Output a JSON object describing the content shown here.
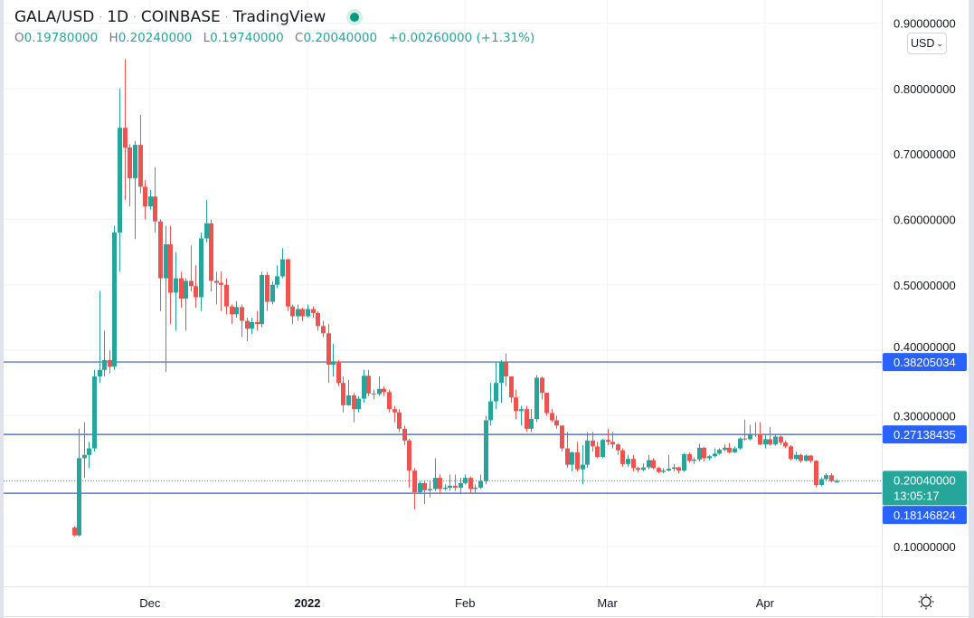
{
  "header": {
    "symbol": "GALA/USD",
    "interval": "1D",
    "exchange": "COINBASE",
    "source": "TradingView",
    "separator": "·",
    "status_color": "#089981",
    "ohlc": {
      "o_label": "O",
      "o": "0.19780000",
      "h_label": "H",
      "h": "0.20240000",
      "l_label": "L",
      "l": "0.19740000",
      "c_label": "C",
      "c": "0.20040000",
      "change": "+0.00260000 (+1.31%)"
    }
  },
  "currency_button": {
    "label": "USD",
    "icon": "chevron-down-icon"
  },
  "settings_icon": "sun-icon",
  "colors": {
    "up": "#26a69a",
    "down": "#ef5350",
    "hline": "#2962ff",
    "last_price": "#26a69a"
  },
  "chart_data": {
    "type": "candlestick",
    "title": "",
    "xlabel": "",
    "ylabel": "",
    "ylim": [
      0.04,
      0.92
    ],
    "grid": true,
    "y_ticks": [
      {
        "value": 0.9,
        "label": "0.90000000"
      },
      {
        "value": 0.8,
        "label": "0.80000000"
      },
      {
        "value": 0.7,
        "label": "0.70000000"
      },
      {
        "value": 0.6,
        "label": "0.60000000"
      },
      {
        "value": 0.5,
        "label": "0.50000000"
      },
      {
        "value": 0.4,
        "label": "0.40000000"
      },
      {
        "value": 0.3,
        "label": "0.30000000"
      },
      {
        "value": 0.1,
        "label": "0.10000000"
      }
    ],
    "x_ticks": [
      {
        "date": "2021-12-01",
        "label": "Dec",
        "bold": false
      },
      {
        "date": "2022-01-01",
        "label": "2022",
        "bold": true
      },
      {
        "date": "2022-02-01",
        "label": "Feb",
        "bold": false
      },
      {
        "date": "2022-03-01",
        "label": "Mar",
        "bold": false
      },
      {
        "date": "2022-04-01",
        "label": "Apr",
        "bold": false
      }
    ],
    "horizontal_lines": [
      {
        "value": 0.38205034,
        "label": "0.38205034"
      },
      {
        "value": 0.27138435,
        "label": "0.27138435"
      },
      {
        "value": 0.18146824,
        "label": "0.18146824"
      }
    ],
    "last_price": {
      "value": 0.2004,
      "label": "0.20040000",
      "countdown": "13:05:17"
    },
    "candles_format": [
      "date",
      "open",
      "high",
      "low",
      "close"
    ],
    "candles": [
      [
        "2021-11-16",
        0.129,
        0.131,
        0.115,
        0.117
      ],
      [
        "2021-11-17",
        0.117,
        0.28,
        0.115,
        0.235
      ],
      [
        "2021-11-18",
        0.235,
        0.29,
        0.205,
        0.24
      ],
      [
        "2021-11-19",
        0.24,
        0.26,
        0.22,
        0.25
      ],
      [
        "2021-11-20",
        0.25,
        0.37,
        0.245,
        0.36
      ],
      [
        "2021-11-21",
        0.36,
        0.49,
        0.35,
        0.37
      ],
      [
        "2021-11-22",
        0.37,
        0.43,
        0.36,
        0.385
      ],
      [
        "2021-11-23",
        0.385,
        0.4,
        0.365,
        0.375
      ],
      [
        "2021-11-24",
        0.375,
        0.59,
        0.37,
        0.58
      ],
      [
        "2021-11-25",
        0.58,
        0.8,
        0.52,
        0.74
      ],
      [
        "2021-11-26",
        0.74,
        0.845,
        0.63,
        0.71
      ],
      [
        "2021-11-27",
        0.71,
        0.715,
        0.62,
        0.663
      ],
      [
        "2021-11-28",
        0.663,
        0.72,
        0.57,
        0.714
      ],
      [
        "2021-11-29",
        0.714,
        0.76,
        0.64,
        0.65
      ],
      [
        "2021-11-30",
        0.65,
        0.66,
        0.6,
        0.62
      ],
      [
        "2021-12-01",
        0.62,
        0.645,
        0.615,
        0.635
      ],
      [
        "2021-12-02",
        0.635,
        0.68,
        0.58,
        0.597
      ],
      [
        "2021-12-03",
        0.597,
        0.6,
        0.46,
        0.51
      ],
      [
        "2021-12-04",
        0.51,
        0.59,
        0.367,
        0.562
      ],
      [
        "2021-12-05",
        0.562,
        0.59,
        0.44,
        0.488
      ],
      [
        "2021-12-06",
        0.488,
        0.55,
        0.43,
        0.51
      ],
      [
        "2021-12-07",
        0.51,
        0.52,
        0.465,
        0.479
      ],
      [
        "2021-12-08",
        0.479,
        0.51,
        0.43,
        0.506
      ],
      [
        "2021-12-09",
        0.506,
        0.56,
        0.49,
        0.498
      ],
      [
        "2021-12-10",
        0.498,
        0.53,
        0.465,
        0.481
      ],
      [
        "2021-12-11",
        0.481,
        0.58,
        0.46,
        0.571
      ],
      [
        "2021-12-12",
        0.571,
        0.63,
        0.565,
        0.594
      ],
      [
        "2021-12-13",
        0.594,
        0.6,
        0.49,
        0.506
      ],
      [
        "2021-12-14",
        0.506,
        0.52,
        0.47,
        0.503
      ],
      [
        "2021-12-15",
        0.503,
        0.52,
        0.46,
        0.5
      ],
      [
        "2021-12-16",
        0.5,
        0.51,
        0.455,
        0.467
      ],
      [
        "2021-12-17",
        0.467,
        0.47,
        0.44,
        0.455
      ],
      [
        "2021-12-18",
        0.455,
        0.475,
        0.45,
        0.466
      ],
      [
        "2021-12-19",
        0.466,
        0.47,
        0.42,
        0.445
      ],
      [
        "2021-12-20",
        0.445,
        0.45,
        0.414,
        0.433
      ],
      [
        "2021-12-21",
        0.433,
        0.45,
        0.425,
        0.443
      ],
      [
        "2021-12-22",
        0.443,
        0.46,
        0.43,
        0.44
      ],
      [
        "2021-12-23",
        0.44,
        0.52,
        0.435,
        0.515
      ],
      [
        "2021-12-24",
        0.515,
        0.52,
        0.46,
        0.474
      ],
      [
        "2021-12-25",
        0.474,
        0.505,
        0.47,
        0.5
      ],
      [
        "2021-12-26",
        0.5,
        0.53,
        0.495,
        0.513
      ],
      [
        "2021-12-27",
        0.513,
        0.556,
        0.51,
        0.539
      ],
      [
        "2021-12-28",
        0.539,
        0.54,
        0.46,
        0.467
      ],
      [
        "2021-12-29",
        0.467,
        0.47,
        0.44,
        0.452
      ],
      [
        "2021-12-30",
        0.452,
        0.47,
        0.445,
        0.463
      ],
      [
        "2021-12-31",
        0.463,
        0.465,
        0.445,
        0.452
      ],
      [
        "2022-01-01",
        0.452,
        0.47,
        0.45,
        0.463
      ],
      [
        "2022-01-02",
        0.463,
        0.467,
        0.45,
        0.457
      ],
      [
        "2022-01-03",
        0.457,
        0.46,
        0.43,
        0.437
      ],
      [
        "2022-01-04",
        0.437,
        0.445,
        0.42,
        0.426
      ],
      [
        "2022-01-05",
        0.426,
        0.44,
        0.35,
        0.378
      ],
      [
        "2022-01-06",
        0.378,
        0.41,
        0.36,
        0.383
      ],
      [
        "2022-01-07",
        0.383,
        0.385,
        0.345,
        0.35
      ],
      [
        "2022-01-08",
        0.35,
        0.36,
        0.305,
        0.316
      ],
      [
        "2022-01-09",
        0.316,
        0.355,
        0.315,
        0.331
      ],
      [
        "2022-01-10",
        0.331,
        0.335,
        0.29,
        0.31
      ],
      [
        "2022-01-11",
        0.31,
        0.33,
        0.305,
        0.326
      ],
      [
        "2022-01-12",
        0.326,
        0.37,
        0.32,
        0.361
      ],
      [
        "2022-01-13",
        0.361,
        0.37,
        0.33,
        0.334
      ],
      [
        "2022-01-14",
        0.334,
        0.34,
        0.325,
        0.333
      ],
      [
        "2022-01-15",
        0.333,
        0.36,
        0.33,
        0.341
      ],
      [
        "2022-01-16",
        0.341,
        0.345,
        0.33,
        0.336
      ],
      [
        "2022-01-17",
        0.336,
        0.34,
        0.305,
        0.31
      ],
      [
        "2022-01-18",
        0.31,
        0.315,
        0.29,
        0.305
      ],
      [
        "2022-01-19",
        0.305,
        0.31,
        0.275,
        0.28
      ],
      [
        "2022-01-20",
        0.28,
        0.285,
        0.255,
        0.262
      ],
      [
        "2022-01-21",
        0.262,
        0.265,
        0.19,
        0.216
      ],
      [
        "2022-01-22",
        0.216,
        0.22,
        0.157,
        0.183
      ],
      [
        "2022-01-23",
        0.183,
        0.2,
        0.18,
        0.197
      ],
      [
        "2022-01-24",
        0.197,
        0.2,
        0.165,
        0.186
      ],
      [
        "2022-01-25",
        0.186,
        0.2,
        0.175,
        0.188
      ],
      [
        "2022-01-26",
        0.188,
        0.235,
        0.185,
        0.205
      ],
      [
        "2022-01-27",
        0.205,
        0.21,
        0.18,
        0.188
      ],
      [
        "2022-01-28",
        0.188,
        0.195,
        0.185,
        0.19
      ],
      [
        "2022-01-29",
        0.19,
        0.21,
        0.185,
        0.193
      ],
      [
        "2022-01-30",
        0.193,
        0.21,
        0.185,
        0.19
      ],
      [
        "2022-01-31",
        0.19,
        0.205,
        0.18,
        0.197
      ],
      [
        "2022-02-01",
        0.197,
        0.21,
        0.195,
        0.205
      ],
      [
        "2022-02-02",
        0.205,
        0.207,
        0.182,
        0.188
      ],
      [
        "2022-02-03",
        0.188,
        0.195,
        0.182,
        0.19
      ],
      [
        "2022-02-04",
        0.19,
        0.21,
        0.188,
        0.2
      ],
      [
        "2022-02-05",
        0.2,
        0.3,
        0.195,
        0.293
      ],
      [
        "2022-02-06",
        0.293,
        0.35,
        0.285,
        0.322
      ],
      [
        "2022-02-07",
        0.322,
        0.383,
        0.31,
        0.35
      ],
      [
        "2022-02-08",
        0.35,
        0.385,
        0.32,
        0.383
      ],
      [
        "2022-02-09",
        0.383,
        0.395,
        0.345,
        0.36
      ],
      [
        "2022-02-10",
        0.36,
        0.36,
        0.32,
        0.328
      ],
      [
        "2022-02-11",
        0.328,
        0.34,
        0.295,
        0.307
      ],
      [
        "2022-02-12",
        0.307,
        0.315,
        0.285,
        0.31
      ],
      [
        "2022-02-13",
        0.31,
        0.315,
        0.275,
        0.28
      ],
      [
        "2022-02-14",
        0.28,
        0.31,
        0.275,
        0.295
      ],
      [
        "2022-02-15",
        0.295,
        0.362,
        0.29,
        0.358
      ],
      [
        "2022-02-16",
        0.358,
        0.36,
        0.325,
        0.335
      ],
      [
        "2022-02-17",
        0.335,
        0.335,
        0.3,
        0.304
      ],
      [
        "2022-02-18",
        0.304,
        0.31,
        0.29,
        0.293
      ],
      [
        "2022-02-19",
        0.293,
        0.3,
        0.28,
        0.285
      ],
      [
        "2022-02-20",
        0.285,
        0.285,
        0.245,
        0.25
      ],
      [
        "2022-02-21",
        0.25,
        0.275,
        0.22,
        0.225
      ],
      [
        "2022-02-22",
        0.225,
        0.245,
        0.215,
        0.244
      ],
      [
        "2022-02-23",
        0.244,
        0.26,
        0.215,
        0.218
      ],
      [
        "2022-02-24",
        0.218,
        0.255,
        0.195,
        0.225
      ],
      [
        "2022-02-25",
        0.225,
        0.275,
        0.22,
        0.262
      ],
      [
        "2022-02-26",
        0.262,
        0.275,
        0.245,
        0.253
      ],
      [
        "2022-02-27",
        0.253,
        0.26,
        0.235,
        0.237
      ],
      [
        "2022-02-28",
        0.237,
        0.265,
        0.235,
        0.263
      ],
      [
        "2022-03-01",
        0.263,
        0.28,
        0.255,
        0.26
      ],
      [
        "2022-03-02",
        0.26,
        0.275,
        0.25,
        0.256
      ],
      [
        "2022-03-03",
        0.256,
        0.258,
        0.24,
        0.247
      ],
      [
        "2022-03-04",
        0.247,
        0.25,
        0.222,
        0.226
      ],
      [
        "2022-03-05",
        0.226,
        0.24,
        0.222,
        0.234
      ],
      [
        "2022-03-06",
        0.234,
        0.24,
        0.215,
        0.22
      ],
      [
        "2022-03-07",
        0.22,
        0.222,
        0.213,
        0.217
      ],
      [
        "2022-03-08",
        0.217,
        0.227,
        0.215,
        0.221
      ],
      [
        "2022-03-09",
        0.221,
        0.24,
        0.218,
        0.232
      ],
      [
        "2022-03-10",
        0.232,
        0.235,
        0.218,
        0.22
      ],
      [
        "2022-03-11",
        0.22,
        0.222,
        0.212,
        0.214
      ],
      [
        "2022-03-12",
        0.214,
        0.22,
        0.212,
        0.216
      ],
      [
        "2022-03-13",
        0.216,
        0.24,
        0.215,
        0.219
      ],
      [
        "2022-03-14",
        0.219,
        0.226,
        0.215,
        0.221
      ],
      [
        "2022-03-15",
        0.221,
        0.222,
        0.212,
        0.216
      ],
      [
        "2022-03-16",
        0.216,
        0.243,
        0.214,
        0.241
      ],
      [
        "2022-03-17",
        0.241,
        0.244,
        0.228,
        0.231
      ],
      [
        "2022-03-18",
        0.231,
        0.236,
        0.226,
        0.233
      ],
      [
        "2022-03-19",
        0.233,
        0.257,
        0.23,
        0.251
      ],
      [
        "2022-03-20",
        0.251,
        0.252,
        0.23,
        0.235
      ],
      [
        "2022-03-21",
        0.235,
        0.24,
        0.232,
        0.238
      ],
      [
        "2022-03-22",
        0.238,
        0.25,
        0.236,
        0.242
      ],
      [
        "2022-03-23",
        0.242,
        0.25,
        0.24,
        0.248
      ],
      [
        "2022-03-24",
        0.248,
        0.256,
        0.245,
        0.251
      ],
      [
        "2022-03-25",
        0.251,
        0.258,
        0.242,
        0.244
      ],
      [
        "2022-03-26",
        0.244,
        0.253,
        0.243,
        0.25
      ],
      [
        "2022-03-27",
        0.25,
        0.267,
        0.248,
        0.265
      ],
      [
        "2022-03-28",
        0.265,
        0.294,
        0.262,
        0.264
      ],
      [
        "2022-03-29",
        0.264,
        0.286,
        0.262,
        0.271
      ],
      [
        "2022-03-30",
        0.271,
        0.29,
        0.268,
        0.272
      ],
      [
        "2022-03-31",
        0.272,
        0.29,
        0.255,
        0.256
      ],
      [
        "2022-04-01",
        0.256,
        0.27,
        0.25,
        0.264
      ],
      [
        "2022-04-02",
        0.264,
        0.283,
        0.254,
        0.256
      ],
      [
        "2022-04-03",
        0.256,
        0.272,
        0.254,
        0.268
      ],
      [
        "2022-04-04",
        0.268,
        0.27,
        0.255,
        0.259
      ],
      [
        "2022-04-05",
        0.259,
        0.262,
        0.25,
        0.253
      ],
      [
        "2022-04-06",
        0.253,
        0.255,
        0.232,
        0.234
      ],
      [
        "2022-04-07",
        0.234,
        0.245,
        0.232,
        0.24
      ],
      [
        "2022-04-08",
        0.24,
        0.242,
        0.228,
        0.231
      ],
      [
        "2022-04-09",
        0.231,
        0.241,
        0.23,
        0.239
      ],
      [
        "2022-04-10",
        0.239,
        0.24,
        0.228,
        0.231
      ],
      [
        "2022-04-11",
        0.231,
        0.232,
        0.19,
        0.194
      ],
      [
        "2022-04-12",
        0.194,
        0.206,
        0.192,
        0.203
      ],
      [
        "2022-04-13",
        0.203,
        0.212,
        0.2,
        0.209
      ],
      [
        "2022-04-14",
        0.209,
        0.212,
        0.198,
        0.2
      ],
      [
        "2022-04-15",
        0.1978,
        0.2024,
        0.1974,
        0.2004
      ]
    ]
  }
}
